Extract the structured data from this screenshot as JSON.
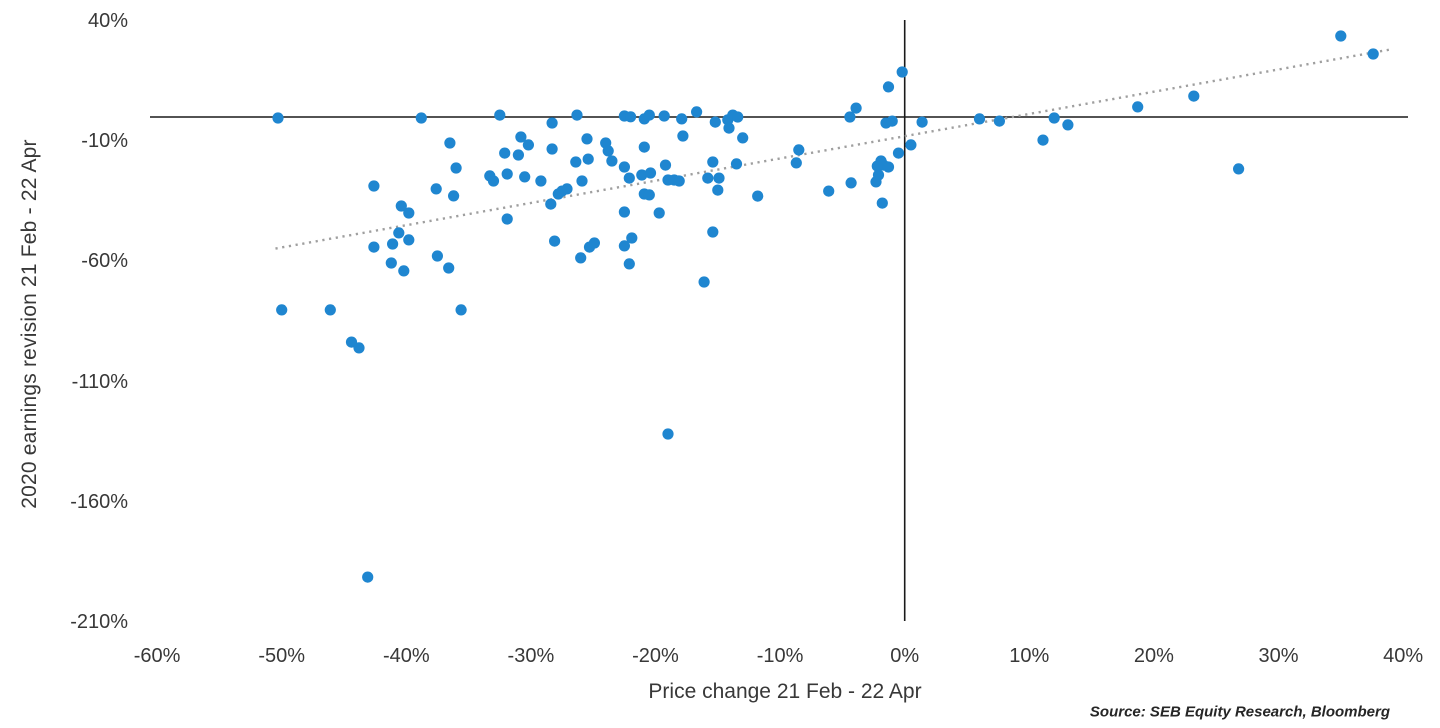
{
  "chart_data": {
    "type": "scatter",
    "xlabel": "Price change 21 Feb - 22 Apr",
    "ylabel": "2020 earnings revision 21 Feb - 22 Apr",
    "source": "Source: SEB Equity Research, Bloomberg",
    "x_tick_values": [
      -60,
      -50,
      -40,
      -30,
      -20,
      -10,
      0,
      10,
      20,
      30,
      40
    ],
    "x_tick_labels": [
      "-60%",
      "-50%",
      "-40%",
      "-30%",
      "-20%",
      "-10%",
      "0%",
      "10%",
      "20%",
      "30%",
      "40%"
    ],
    "y_tick_values": [
      40,
      -10,
      -60,
      -110,
      -160,
      -210
    ],
    "y_tick_labels": [
      "40%",
      "-10%",
      "-60%",
      "-110%",
      "-160%",
      "-210%"
    ],
    "xlim": [
      -60.5,
      40.5
    ],
    "ylim": [
      -213,
      45
    ],
    "grid": false,
    "legend": "none",
    "zero_axis_lines": true,
    "dot_color": "#1f86d0",
    "axis_line_color": "#1a1a1a",
    "trend_line": {
      "style": "dotted",
      "color": "#9f9f9f",
      "equation": "y = 0.92x - 8",
      "x1": -50.5,
      "y1": -54.7,
      "x2": 38.9,
      "y2": 28.0
    },
    "points": [
      [
        -50.3,
        -0.4
      ],
      [
        -38.8,
        -0.4
      ],
      [
        -32.5,
        0.8
      ],
      [
        -28.3,
        -2.5
      ],
      [
        -26.3,
        0.8
      ],
      [
        -22.5,
        0.4
      ],
      [
        -22.0,
        0.1
      ],
      [
        -20.9,
        -0.8
      ],
      [
        -20.5,
        0.8
      ],
      [
        -19.3,
        0.4
      ],
      [
        -17.9,
        -0.8
      ],
      [
        -16.7,
        2.1
      ],
      [
        -15.2,
        -2.1
      ],
      [
        -14.2,
        -1.2
      ],
      [
        -13.8,
        0.8
      ],
      [
        -13.4,
        0.0
      ],
      [
        -14.1,
        -4.6
      ],
      [
        -13.0,
        -8.7
      ],
      [
        -1.3,
        12.5
      ],
      [
        -0.2,
        18.7
      ],
      [
        -4.4,
        0.0
      ],
      [
        -3.9,
        3.7
      ],
      [
        -1.5,
        -2.5
      ],
      [
        -1.0,
        -1.7
      ],
      [
        1.4,
        -2.1
      ],
      [
        0.5,
        -11.6
      ],
      [
        -0.5,
        -15.0
      ],
      [
        -1.9,
        -18.3
      ],
      [
        -1.7,
        -20.0
      ],
      [
        -1.3,
        -20.8
      ],
      [
        -2.2,
        -20.4
      ],
      [
        -2.1,
        -24.1
      ],
      [
        -2.3,
        -27.0
      ],
      [
        -4.3,
        -27.4
      ],
      [
        -1.8,
        -35.8
      ],
      [
        6.0,
        -0.8
      ],
      [
        7.6,
        -1.7
      ],
      [
        12.0,
        -0.4
      ],
      [
        13.1,
        -3.3
      ],
      [
        11.1,
        -9.6
      ],
      [
        18.7,
        4.2
      ],
      [
        23.2,
        8.7
      ],
      [
        35.0,
        33.7
      ],
      [
        37.6,
        26.2
      ],
      [
        26.8,
        -21.6
      ],
      [
        -36.5,
        -10.8
      ],
      [
        -36.0,
        -21.2
      ],
      [
        -42.6,
        -28.7
      ],
      [
        -37.6,
        -29.9
      ],
      [
        -36.2,
        -32.8
      ],
      [
        -40.4,
        -37.0
      ],
      [
        -39.8,
        -39.9
      ],
      [
        -40.6,
        -48.2
      ],
      [
        -41.1,
        -52.8
      ],
      [
        -42.6,
        -54.1
      ],
      [
        -39.8,
        -51.1
      ],
      [
        -37.5,
        -57.8
      ],
      [
        -41.2,
        -60.7
      ],
      [
        -40.2,
        -64.0
      ],
      [
        -36.6,
        -62.8
      ],
      [
        -50.0,
        -80.2
      ],
      [
        -46.1,
        -80.2
      ],
      [
        -35.6,
        -80.2
      ],
      [
        -44.4,
        -93.6
      ],
      [
        -43.8,
        -96.0
      ],
      [
        -43.1,
        -191.3
      ],
      [
        -19.0,
        -131.8
      ],
      [
        -30.8,
        -8.3
      ],
      [
        -30.2,
        -11.6
      ],
      [
        -32.1,
        -15.0
      ],
      [
        -31.0,
        -15.8
      ],
      [
        -28.3,
        -13.3
      ],
      [
        -25.5,
        -9.1
      ],
      [
        -24.0,
        -10.8
      ],
      [
        -23.8,
        -14.1
      ],
      [
        -23.5,
        -18.3
      ],
      [
        -26.4,
        -18.7
      ],
      [
        -25.4,
        -17.5
      ],
      [
        -20.9,
        -12.5
      ],
      [
        -22.5,
        -20.8
      ],
      [
        -19.2,
        -20.0
      ],
      [
        -33.3,
        -24.5
      ],
      [
        -33.0,
        -26.6
      ],
      [
        -31.9,
        -23.7
      ],
      [
        -30.5,
        -24.9
      ],
      [
        -29.2,
        -26.6
      ],
      [
        -27.5,
        -30.8
      ],
      [
        -27.1,
        -29.9
      ],
      [
        -27.8,
        -32.0
      ],
      [
        -25.9,
        -26.6
      ],
      [
        -22.1,
        -25.4
      ],
      [
        -21.1,
        -24.1
      ],
      [
        -20.4,
        -23.3
      ],
      [
        -19.0,
        -26.2
      ],
      [
        -18.5,
        -26.2
      ],
      [
        -18.1,
        -26.6
      ],
      [
        -20.9,
        -32.0
      ],
      [
        -20.5,
        -32.4
      ],
      [
        -28.4,
        -36.2
      ],
      [
        -22.5,
        -39.5
      ],
      [
        -19.7,
        -39.9
      ],
      [
        -31.9,
        -42.4
      ],
      [
        -28.1,
        -51.6
      ],
      [
        -25.3,
        -54.1
      ],
      [
        -24.9,
        -52.4
      ],
      [
        -22.5,
        -53.6
      ],
      [
        -21.9,
        -50.3
      ],
      [
        -22.1,
        -61.1
      ],
      [
        -26.0,
        -58.6
      ],
      [
        -17.8,
        -7.9
      ],
      [
        -15.4,
        -18.7
      ],
      [
        -13.5,
        -19.5
      ],
      [
        -15.8,
        -25.4
      ],
      [
        -14.9,
        -25.4
      ],
      [
        -15.0,
        -30.4
      ],
      [
        -11.8,
        -32.9
      ],
      [
        -8.5,
        -13.7
      ],
      [
        -8.7,
        -19.1
      ],
      [
        -6.1,
        -30.8
      ],
      [
        -15.4,
        -47.8
      ],
      [
        -16.1,
        -68.6
      ]
    ]
  }
}
